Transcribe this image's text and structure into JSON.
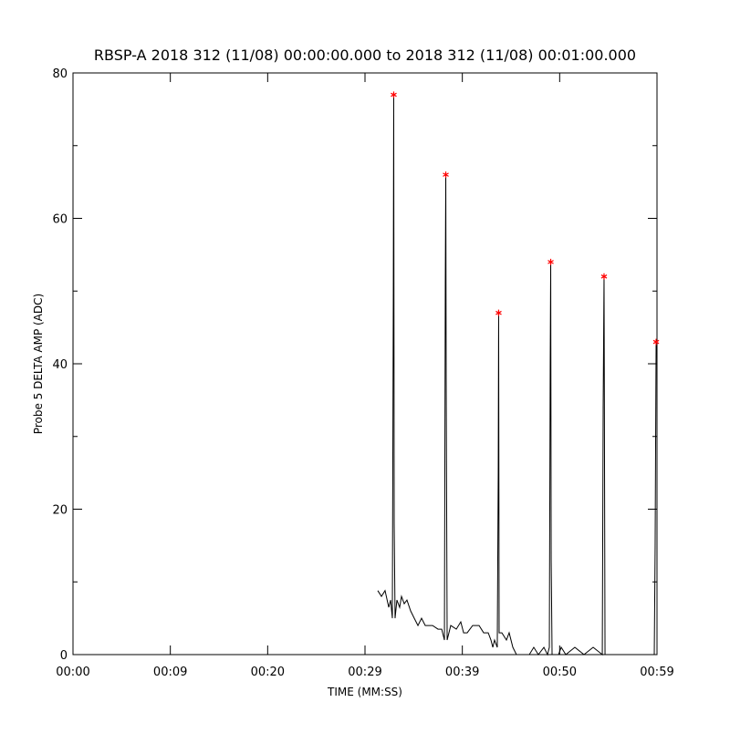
{
  "chart_data": {
    "type": "line",
    "title": "RBSP-A 2018 312 (11/08) 00:00:00.000 to 2018 312 (11/08) 00:01:00.000",
    "xlabel": "TIME (MM:SS)",
    "ylabel": "Probe 5 DELTA AMP (ADC)",
    "xlim": [
      0,
      60
    ],
    "ylim": [
      0,
      80
    ],
    "xticks": [
      {
        "value": 0,
        "label": "00:00"
      },
      {
        "value": 10,
        "label": "00:09"
      },
      {
        "value": 20,
        "label": "00:20"
      },
      {
        "value": 30,
        "label": "00:29"
      },
      {
        "value": 40,
        "label": "00:39"
      },
      {
        "value": 50,
        "label": "00:50"
      },
      {
        "value": 60,
        "label": "00:59"
      }
    ],
    "yticks": [
      0,
      20,
      40,
      60,
      80
    ],
    "yminorticks": [
      10,
      30,
      50,
      70
    ],
    "series": [
      {
        "color": "#000000",
        "x": [
          31.31,
          31.69,
          32.06,
          32.44,
          32.63,
          32.81,
          32.91,
          32.95,
          33.0,
          33.09,
          33.28,
          33.56,
          33.75,
          34.03,
          34.31,
          34.69,
          35.06,
          35.44,
          35.81,
          36.19,
          36.56,
          36.94,
          37.5,
          37.88,
          38.16,
          38.25,
          38.3,
          38.34,
          38.44,
          38.81,
          39.38,
          39.84,
          40.13,
          40.5,
          41.06,
          41.72,
          42.19,
          42.66,
          42.94,
          43.13,
          43.31,
          43.59,
          43.69,
          43.73,
          43.78,
          44.06,
          44.53,
          44.81,
          45.19,
          45.56,
          45.94,
          46.88,
          47.34,
          47.81,
          48.38,
          48.75,
          48.94,
          49.03,
          49.08,
          49.13,
          49.22,
          49.88,
          50.16,
          50.63,
          51.56,
          52.5,
          53.44,
          54.38,
          54.47,
          54.56,
          54.66,
          55.31,
          56.25,
          58.13,
          59.72,
          59.81,
          59.91
        ],
        "values": [
          8.8,
          8,
          8.8,
          6.5,
          7.5,
          5,
          50,
          77,
          18,
          5,
          7.5,
          6.5,
          8,
          7,
          7.5,
          6,
          5,
          4,
          5,
          4,
          4,
          4,
          3.5,
          3.5,
          2,
          51,
          66,
          38,
          2,
          4,
          3.5,
          4.5,
          3,
          3,
          4,
          4,
          3,
          3,
          2,
          1,
          2,
          1,
          25,
          47,
          3,
          3,
          2,
          3,
          1,
          0,
          0,
          0,
          1,
          0,
          1,
          0,
          1,
          40,
          54,
          13,
          0,
          0,
          1,
          0,
          1,
          0,
          1,
          0,
          34,
          52,
          0,
          0,
          0,
          0,
          0,
          15,
          43
        ]
      },
      {
        "color": "#ff0000",
        "marker": "asterisk",
        "x": [
          32.95,
          38.3,
          43.73,
          49.08,
          54.56,
          59.91
        ],
        "values": [
          77,
          66,
          47,
          54,
          52,
          43
        ]
      }
    ]
  }
}
